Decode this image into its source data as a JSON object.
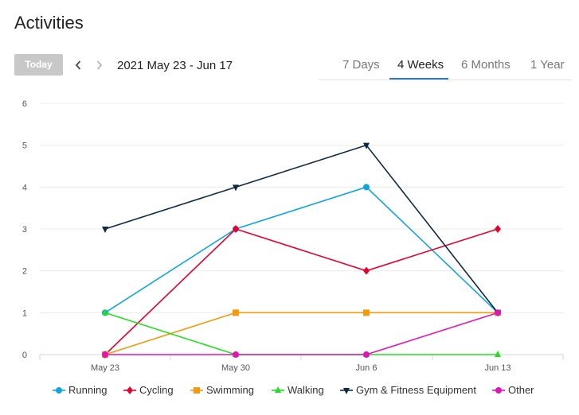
{
  "header": {
    "title": "Activities"
  },
  "toolbar": {
    "today_label": "Today",
    "date_range": "2021 May 23 - Jun 17",
    "tabs": [
      {
        "label": "7 Days",
        "active": false
      },
      {
        "label": "4 Weeks",
        "active": true
      },
      {
        "label": "6 Months",
        "active": false
      },
      {
        "label": "1 Year",
        "active": false
      }
    ],
    "prev_icon": "chevron-left-icon",
    "next_icon": "chevron-right-icon"
  },
  "chart_data": {
    "type": "line",
    "title": "",
    "xlabel": "",
    "ylabel": "",
    "categories": [
      "May 23",
      "May 30",
      "Jun 6",
      "Jun 13"
    ],
    "ylim": [
      0,
      6
    ],
    "yticks": [
      0,
      1,
      2,
      3,
      4,
      5,
      6
    ],
    "grid": true,
    "legend_position": "bottom",
    "series": [
      {
        "name": "Running",
        "color": "#0ea5e0",
        "marker": "circle",
        "values": [
          1,
          3,
          4,
          1
        ]
      },
      {
        "name": "Cycling",
        "color": "#e8002c",
        "marker": "diamond",
        "values": [
          0,
          3,
          2,
          3
        ]
      },
      {
        "name": "Swimming",
        "color": "#f59a0f",
        "marker": "square",
        "values": [
          0,
          1,
          1,
          1
        ]
      },
      {
        "name": "Walking",
        "color": "#22dd22",
        "marker": "triangle-up",
        "values": [
          1,
          0,
          0,
          0
        ]
      },
      {
        "name": "Gym & Fitness Equipment",
        "color": "#0d2a44",
        "marker": "triangle-down",
        "values": [
          3,
          4,
          5,
          1
        ]
      },
      {
        "name": "Other",
        "color": "#e014b8",
        "marker": "circle",
        "values": [
          0,
          0,
          0,
          1
        ]
      }
    ]
  }
}
